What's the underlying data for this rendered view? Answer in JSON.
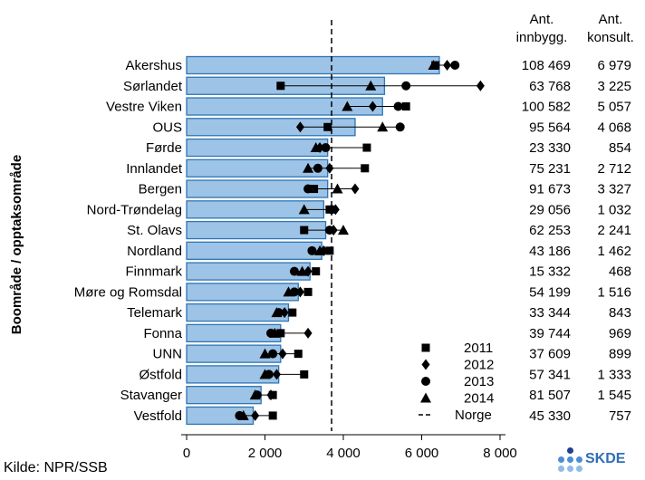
{
  "chart_data": {
    "type": "bar",
    "ylabel": "Boområde / opptaksområde",
    "categories": [
      "Akershus",
      "Sørlandet",
      "Vestre Viken",
      "OUS",
      "Førde",
      "Innlandet",
      "Bergen",
      "Nord-Trøndelag",
      "St. Olavs",
      "Nordland",
      "Finnmark",
      "Møre og Romsdal",
      "Telemark",
      "Fonna",
      "UNN",
      "Østfold",
      "Stavanger",
      "Vestfold"
    ],
    "values": [
      6450,
      5050,
      5000,
      4300,
      3600,
      3600,
      3600,
      3500,
      3550,
      3450,
      3150,
      2850,
      2600,
      2400,
      2400,
      2350,
      1900,
      1700
    ],
    "series": [
      {
        "name": "2011",
        "marker": "square",
        "values": [
          6350,
          2400,
          5600,
          3600,
          4600,
          4550,
          3250,
          3650,
          3000,
          3650,
          3300,
          3100,
          2700,
          2400,
          2850,
          3000,
          2200,
          2200
        ]
      },
      {
        "name": "2012",
        "marker": "diamond",
        "values": [
          6650,
          7500,
          4750,
          2900,
          3400,
          3650,
          4300,
          3800,
          3750,
          3500,
          3100,
          2900,
          2500,
          3100,
          2450,
          2300,
          2150,
          1750
        ]
      },
      {
        "name": "2013",
        "marker": "circle",
        "values": [
          6850,
          5600,
          5400,
          5450,
          3550,
          3350,
          3100,
          3700,
          3650,
          3200,
          2750,
          2750,
          2350,
          2150,
          2200,
          2100,
          1800,
          1350
        ]
      },
      {
        "name": "2014",
        "marker": "triangle",
        "values": [
          6300,
          4700,
          4100,
          5000,
          3300,
          3100,
          3850,
          3000,
          4000,
          3400,
          2950,
          2600,
          2300,
          2250,
          2000,
          2000,
          1750,
          1450
        ]
      }
    ],
    "reference_line": {
      "name": "Norge",
      "value": 3700
    },
    "xlim": [
      0,
      8000
    ],
    "xticks": [
      "0",
      "2 000",
      "4 000",
      "6 000",
      "8 000"
    ],
    "table": {
      "headers": [
        [
          "Ant.",
          "innbygg."
        ],
        [
          "Ant.",
          "konsult."
        ]
      ],
      "innbyggere": [
        "108 469",
        "63 768",
        "100 582",
        "95 564",
        "23 330",
        "75 231",
        "91 673",
        "29 056",
        "62 253",
        "43 186",
        "15 332",
        "54 199",
        "33 344",
        "39 744",
        "37 609",
        "57 341",
        "81 507",
        "45 330"
      ],
      "konsultasjoner": [
        "6 979",
        "3 225",
        "5 057",
        "4 068",
        "854",
        "2 712",
        "3 327",
        "1 032",
        "2 241",
        "1 462",
        "468",
        "1 516",
        "843",
        "969",
        "899",
        "1 333",
        "1 545",
        "757"
      ]
    },
    "legend_position": "bottom-right",
    "grid": false,
    "colors": {
      "bar_fill": "#9dc3e6",
      "bar_stroke": "#2e75b6",
      "marker": "#000000"
    }
  },
  "footer": {
    "source": "Kilde: NPR/SSB",
    "logo_text": "SKDE"
  }
}
